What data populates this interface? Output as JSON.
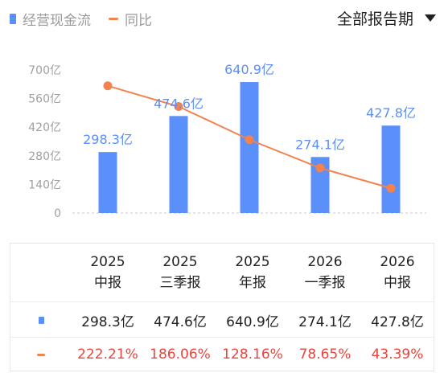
{
  "legend": {
    "bar_label": "经营现金流",
    "line_label": "同比"
  },
  "period_selector": {
    "label": "全部报告期"
  },
  "colors": {
    "bar": "#5b8ff9",
    "line": "#f2834f",
    "negative_text": "#e8453c",
    "axis_text": "#a0a0a0"
  },
  "chart_data": {
    "type": "bar",
    "categories": [
      "2025中报",
      "2025三季报",
      "2025年报",
      "2026一季报",
      "2026中报"
    ],
    "series": [
      {
        "name": "经营现金流",
        "type": "bar",
        "values": [
          298.3,
          474.6,
          640.9,
          274.1,
          427.8
        ],
        "labels": [
          "298.3亿",
          "474.6亿",
          "640.9亿",
          "274.1亿",
          "427.8亿"
        ]
      },
      {
        "name": "同比",
        "type": "line",
        "values": [
          222.21,
          186.06,
          128.16,
          78.65,
          43.39
        ]
      }
    ],
    "ylim": [
      0,
      700
    ],
    "yticks": [
      0,
      140,
      280,
      420,
      560,
      700
    ],
    "ytick_labels": [
      "0",
      "140亿",
      "280亿",
      "420亿",
      "560亿",
      "700亿"
    ],
    "line_ylim": [
      0,
      250
    ],
    "grid": false
  },
  "table": {
    "headers": [
      {
        "year": "2025",
        "period": "中报"
      },
      {
        "year": "2025",
        "period": "三季报"
      },
      {
        "year": "2025",
        "period": "年报"
      },
      {
        "year": "2026",
        "period": "一季报"
      },
      {
        "year": "2026",
        "period": "中报"
      }
    ],
    "cash_flow_row": [
      "298.3亿",
      "474.6亿",
      "640.9亿",
      "274.1亿",
      "427.8亿"
    ],
    "yoy_row": [
      "222.21%",
      "186.06%",
      "128.16%",
      "78.65%",
      "43.39%"
    ]
  }
}
